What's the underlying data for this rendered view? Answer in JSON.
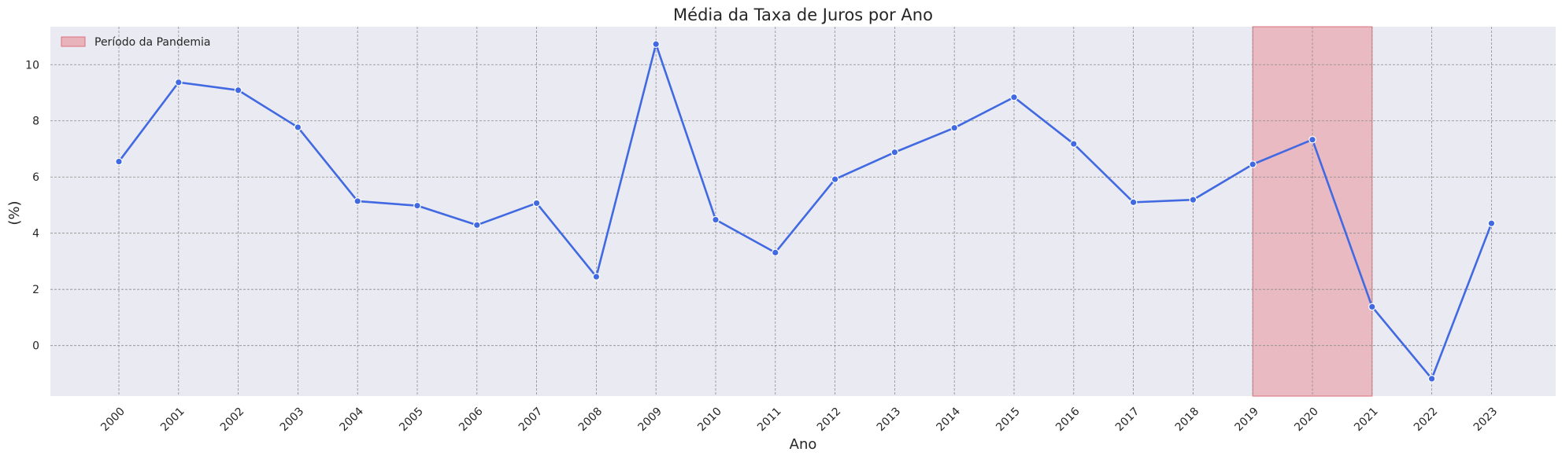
{
  "chart_data": {
    "type": "line",
    "title": "Média da Taxa de Juros por Ano",
    "xlabel": "Ano",
    "ylabel": "(%)",
    "x": [
      "2000",
      "2001",
      "2002",
      "2003",
      "2004",
      "2005",
      "2006",
      "2007",
      "2008",
      "2009",
      "2010",
      "2011",
      "2012",
      "2013",
      "2014",
      "2015",
      "2016",
      "2017",
      "2018",
      "2019",
      "2020",
      "2021",
      "2022",
      "2023"
    ],
    "series": [
      {
        "name": "",
        "color": "#4169e1",
        "values": [
          6.55,
          9.37,
          9.09,
          7.77,
          5.14,
          4.98,
          4.29,
          5.07,
          2.45,
          10.73,
          4.48,
          3.31,
          5.92,
          6.88,
          7.75,
          8.84,
          7.18,
          5.1,
          5.19,
          6.45,
          7.33,
          1.38,
          -1.18,
          4.35
        ]
      }
    ],
    "yticks": [
      0,
      2,
      4,
      6,
      8,
      10
    ],
    "ylim": [
      -1.8,
      11.35
    ],
    "highlight": {
      "label": "Período da Pandemia",
      "x_start": "2019",
      "x_end": "2021",
      "color": "#e8a0a8"
    },
    "grid": true,
    "legend_position": "top-left",
    "background": "#eaeaf2",
    "grid_color": "#8c8c8c"
  }
}
